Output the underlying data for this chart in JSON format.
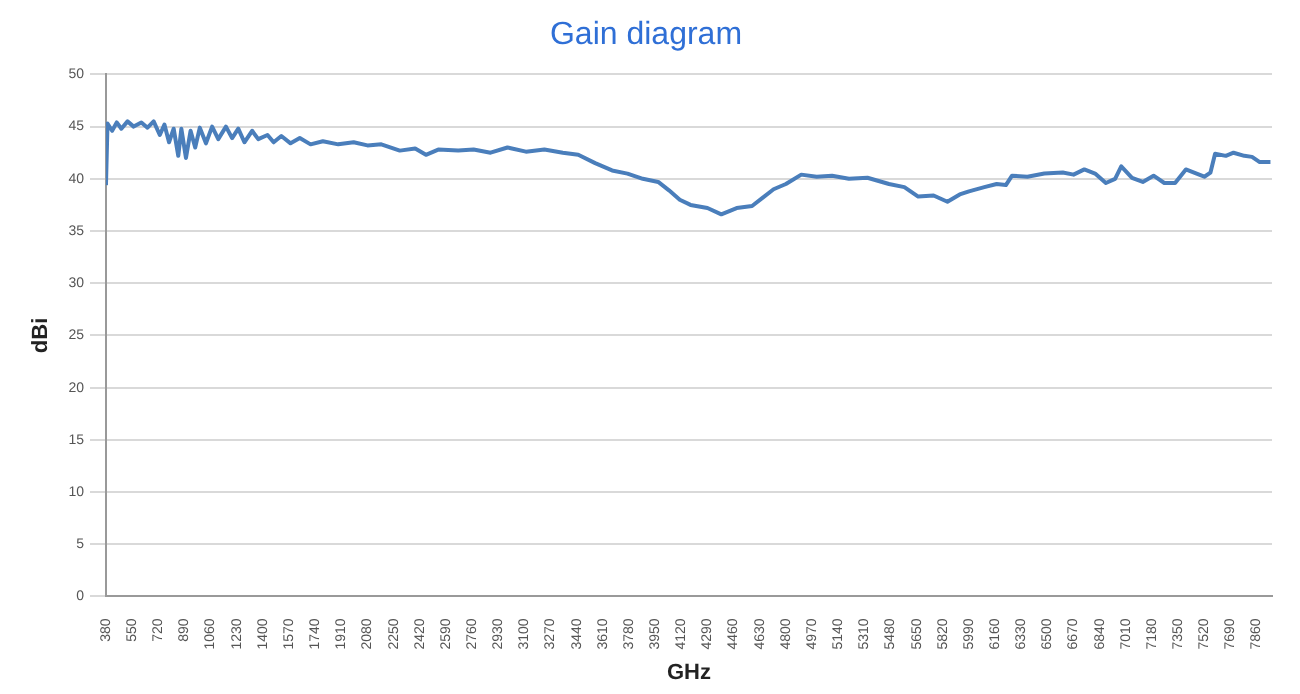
{
  "chart_data": {
    "type": "line",
    "title": "Gain diagram",
    "xlabel": "GHz",
    "ylabel": "dBi",
    "x": [
      380,
      390,
      420,
      450,
      480,
      520,
      560,
      610,
      650,
      690,
      730,
      760,
      790,
      820,
      850,
      870,
      900,
      930,
      960,
      990,
      1030,
      1070,
      1110,
      1160,
      1200,
      1240,
      1280,
      1330,
      1370,
      1430,
      1470,
      1520,
      1580,
      1640,
      1710,
      1790,
      1890,
      1990,
      2080,
      2170,
      2290,
      2390,
      2460,
      2540,
      2670,
      2770,
      2880,
      2990,
      3110,
      3230,
      3350,
      3450,
      3560,
      3670,
      3770,
      3870,
      3970,
      4040,
      4110,
      4180,
      4290,
      4380,
      4480,
      4580,
      4650,
      4720,
      4800,
      4900,
      5000,
      5100,
      5210,
      5330,
      5470,
      5570,
      5660,
      5760,
      5850,
      5930,
      5990,
      6090,
      6170,
      6230,
      6270,
      6370,
      6480,
      6600,
      6670,
      6740,
      6810,
      6880,
      6940,
      6980,
      7050,
      7120,
      7190,
      7260,
      7330,
      7400,
      7470,
      7520,
      7560,
      7590,
      7660,
      7710,
      7780,
      7830,
      7880,
      7950
    ],
    "series": [
      {
        "color": "#4a7ebb",
        "values": [
          39.4,
          45.3,
          44.6,
          45.4,
          44.8,
          45.5,
          45,
          45.4,
          44.9,
          45.5,
          44.2,
          45.2,
          43.5,
          44.8,
          42.2,
          44.8,
          42,
          44.6,
          43,
          44.9,
          43.4,
          45,
          43.8,
          45,
          43.9,
          44.8,
          43.5,
          44.6,
          43.8,
          44.2,
          43.5,
          44.1,
          43.4,
          43.9,
          43.3,
          43.6,
          43.3,
          43.5,
          43.2,
          43.3,
          42.7,
          42.9,
          42.3,
          42.8,
          42.7,
          42.8,
          42.5,
          43,
          42.6,
          42.8,
          42.5,
          42.3,
          41.5,
          40.8,
          40.5,
          40,
          39.7,
          38.9,
          38,
          37.5,
          37.2,
          36.6,
          37.2,
          37.4,
          38.2,
          39,
          39.5,
          40.4,
          40.2,
          40.3,
          40,
          40.1,
          39.5,
          39.2,
          38.3,
          38.4,
          37.8,
          38.5,
          38.8,
          39.2,
          39.5,
          39.4,
          40.3,
          40.2,
          40.5,
          40.6,
          40.4,
          40.9,
          40.5,
          39.6,
          40,
          41.2,
          40.1,
          39.7,
          40.3,
          39.6,
          39.6,
          40.9,
          40.5,
          40.2,
          40.6,
          42.4,
          42.2,
          42.5,
          42.2,
          42.1,
          41.6,
          41.6
        ]
      }
    ],
    "xlim": [
      380,
      7960
    ],
    "xticks": [
      380,
      550,
      720,
      890,
      1060,
      1230,
      1400,
      1570,
      1740,
      1910,
      2080,
      2250,
      2420,
      2590,
      2760,
      2930,
      3100,
      3270,
      3440,
      3610,
      3780,
      3950,
      4120,
      4290,
      4460,
      4630,
      4800,
      4970,
      5140,
      5310,
      5480,
      5650,
      5820,
      5990,
      6160,
      6330,
      6500,
      6670,
      6840,
      7010,
      7180,
      7350,
      7520,
      7690,
      7860
    ],
    "ylim": [
      0,
      50
    ],
    "yticks": [
      0,
      5,
      10,
      15,
      20,
      25,
      30,
      35,
      40,
      45,
      50
    ],
    "grid": "y",
    "legend": false,
    "marker": "none",
    "line_style": "solid"
  }
}
